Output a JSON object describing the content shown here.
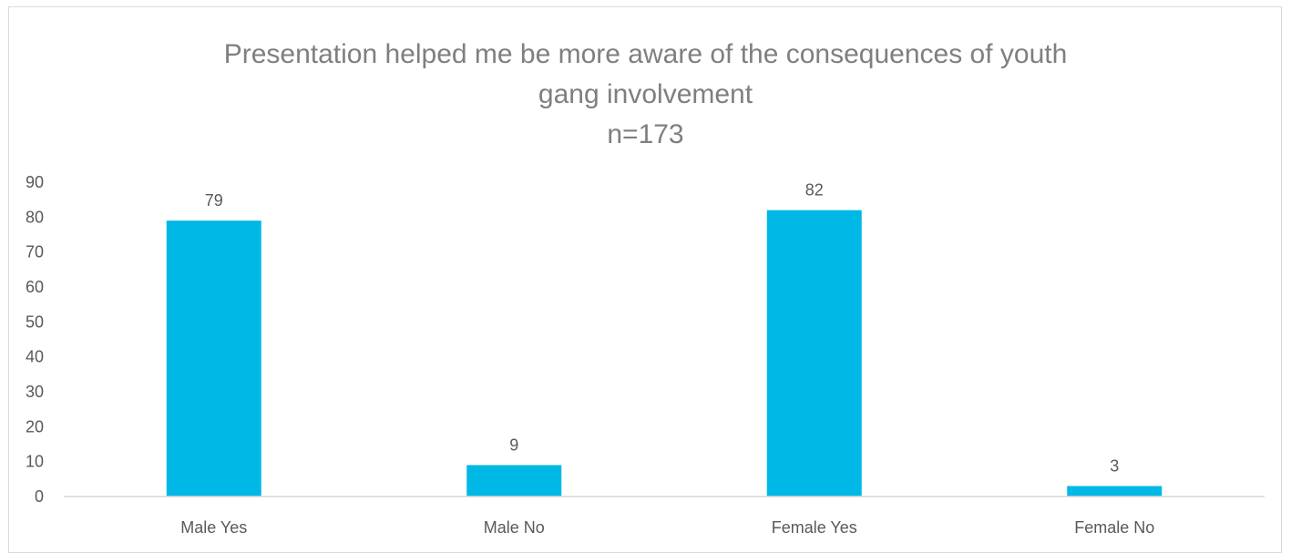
{
  "chart_data": {
    "type": "bar",
    "title_lines": [
      "Presentation helped me be more aware of the consequences of youth",
      "gang involvement",
      "n=173"
    ],
    "categories": [
      "Male Yes",
      "Male No",
      "Female Yes",
      "Female No"
    ],
    "values": [
      79,
      9,
      82,
      3
    ],
    "data_labels": [
      "79",
      "9",
      "82",
      "3"
    ],
    "y_ticks": [
      "0",
      "10",
      "20",
      "30",
      "40",
      "50",
      "60",
      "70",
      "80",
      "90"
    ],
    "ylim": [
      0,
      90
    ],
    "xlabel": "",
    "ylabel": "",
    "grid": false,
    "legend": "none",
    "colors": {
      "bar": "#00b8e6",
      "axis": "#d9d9d9",
      "text": "#595959",
      "title": "#7f7f7f"
    }
  }
}
